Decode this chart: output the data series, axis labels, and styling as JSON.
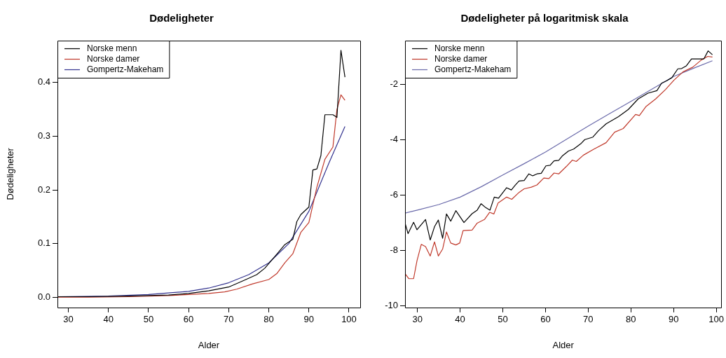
{
  "chart_data": [
    {
      "type": "line",
      "title": "Dødeligheter",
      "xlabel": "Alder",
      "ylabel": "Dødeligheter",
      "xlim": [
        27.3,
        102.8
      ],
      "xticks": [
        30,
        40,
        50,
        60,
        70,
        80,
        90,
        100
      ],
      "ylim": [
        -0.019,
        0.478
      ],
      "yticks": [
        {
          "value": 0,
          "label": "0.0"
        },
        0.1,
        0.2,
        0.3,
        0.4
      ],
      "grid": false,
      "legend": "top left",
      "marker": "none",
      "line_style": "solid",
      "series": [
        {
          "name": "Norske menn",
          "color": "#000000",
          "x": [
            27.3,
            35,
            45,
            55,
            60,
            65,
            70,
            74,
            77,
            79,
            82,
            84,
            86,
            87,
            88,
            90,
            91,
            92,
            93,
            94,
            96,
            97,
            98,
            99
          ],
          "values": [
            0.001,
            0.001,
            0.002,
            0.004,
            0.007,
            0.012,
            0.019,
            0.032,
            0.042,
            0.054,
            0.08,
            0.098,
            0.108,
            0.141,
            0.154,
            0.168,
            0.237,
            0.239,
            0.264,
            0.34,
            0.34,
            0.335,
            0.46,
            0.41
          ]
        },
        {
          "name": "Norske damer",
          "color": "#c0392b",
          "x": [
            27.3,
            35,
            45,
            55,
            60,
            65,
            69,
            72,
            76,
            80,
            82,
            84,
            86,
            88,
            90,
            92,
            94,
            96,
            97,
            98,
            99
          ],
          "values": [
            0,
            0,
            0.001,
            0.003,
            0.005,
            0.007,
            0.01,
            0.015,
            0.025,
            0.033,
            0.044,
            0.064,
            0.081,
            0.121,
            0.139,
            0.205,
            0.257,
            0.28,
            0.35,
            0.377,
            0.367
          ]
        },
        {
          "name": "Gompertz-Makeham",
          "color": "#33338f",
          "x": [
            27.3,
            40,
            50,
            60,
            65,
            70,
            75,
            80,
            85,
            90,
            95,
            99
          ],
          "values": [
            0.001,
            0.002,
            0.005,
            0.011,
            0.017,
            0.027,
            0.042,
            0.064,
            0.1,
            0.16,
            0.25,
            0.318
          ]
        }
      ]
    },
    {
      "type": "line",
      "title": "Dødeligheter på logaritmisk skala",
      "xlabel": "Alder",
      "xlim": [
        27.1,
        101.2
      ],
      "xticks": [
        30,
        40,
        50,
        60,
        70,
        80,
        90,
        100
      ],
      "ylim": [
        -10.07,
        -0.42
      ],
      "yticks": [
        -10,
        -8,
        -6,
        -4,
        -2
      ],
      "grid": false,
      "legend": "top left",
      "marker": "none",
      "line_style": "solid",
      "series": [
        {
          "name": "Norske menn",
          "color": "#000000",
          "x": [
            27.1,
            27.8,
            29.1,
            29.9,
            31.9,
            33,
            34,
            34.9,
            35.9,
            36.8,
            37.8,
            39,
            40.9,
            42.8,
            44,
            44.9,
            46,
            47,
            48,
            49,
            50.9,
            52,
            52.9,
            53.8,
            55,
            56.1,
            57,
            58,
            59,
            60.1,
            61.1,
            62,
            63.1,
            64,
            65.4,
            66.6,
            68.4,
            69.2,
            71.1,
            72.4,
            74.2,
            77.1,
            79.4,
            81.7,
            84,
            86.1,
            87.2,
            88.4,
            89.6,
            91,
            91.9,
            93,
            94.2,
            95.7,
            97.1,
            98.1,
            99.1
          ],
          "values": [
            -7.02,
            -7.4,
            -6.99,
            -7.26,
            -6.89,
            -7.63,
            -7.15,
            -6.91,
            -7.57,
            -6.69,
            -6.95,
            -6.57,
            -7.0,
            -6.68,
            -6.55,
            -6.32,
            -6.46,
            -6.55,
            -6.08,
            -6.12,
            -5.74,
            -5.82,
            -5.65,
            -5.5,
            -5.48,
            -5.24,
            -5.31,
            -5.24,
            -5.22,
            -4.95,
            -4.93,
            -4.77,
            -4.75,
            -4.58,
            -4.41,
            -4.34,
            -4.13,
            -4.0,
            -3.91,
            -3.68,
            -3.43,
            -3.17,
            -2.91,
            -2.53,
            -2.32,
            -2.23,
            -1.96,
            -1.87,
            -1.76,
            -1.44,
            -1.43,
            -1.33,
            -1.08,
            -1.08,
            -1.08,
            -0.79,
            -0.93
          ]
        },
        {
          "name": "Norske damer",
          "color": "#c0392b",
          "x": [
            27.1,
            28,
            29.1,
            29.9,
            30.9,
            31.9,
            33,
            34,
            34.9,
            35.9,
            36.8,
            37.8,
            39,
            39.9,
            40.7,
            42.8,
            44,
            45.7,
            46.9,
            47.9,
            48.9,
            50.9,
            52.1,
            53.8,
            55,
            56.7,
            58,
            59.6,
            60.8,
            62,
            63.1,
            64.9,
            66.3,
            67.2,
            68.9,
            71.3,
            74.2,
            76.2,
            78.2,
            81.1,
            82,
            83.5,
            85.8,
            88.1,
            90.1,
            92.2,
            94.5,
            96.5,
            98,
            99.1
          ],
          "values": [
            -8.85,
            -9.03,
            -9.03,
            -8.38,
            -7.79,
            -7.87,
            -8.21,
            -7.7,
            -8.21,
            -7.96,
            -7.34,
            -7.74,
            -7.81,
            -7.74,
            -7.29,
            -7.27,
            -7.02,
            -6.89,
            -6.63,
            -6.69,
            -6.29,
            -6.08,
            -6.16,
            -5.91,
            -5.78,
            -5.72,
            -5.64,
            -5.39,
            -5.41,
            -5.21,
            -5.24,
            -4.97,
            -4.74,
            -4.79,
            -4.56,
            -4.35,
            -4.11,
            -3.73,
            -3.6,
            -3.09,
            -3.13,
            -2.81,
            -2.53,
            -2.19,
            -1.85,
            -1.55,
            -1.38,
            -1.12,
            -0.99,
            -1.01
          ]
        },
        {
          "name": "Gompertz-Makeham",
          "color": "#6a6aaa",
          "x": [
            27.1,
            30,
            35,
            40,
            45,
            50,
            55,
            60,
            65,
            70,
            75,
            80,
            85,
            90,
            95,
            99.1
          ],
          "values": [
            -6.66,
            -6.55,
            -6.35,
            -6.08,
            -5.7,
            -5.28,
            -4.87,
            -4.45,
            -3.98,
            -3.51,
            -3.06,
            -2.62,
            -2.17,
            -1.72,
            -1.4,
            -1.15
          ]
        }
      ]
    }
  ]
}
